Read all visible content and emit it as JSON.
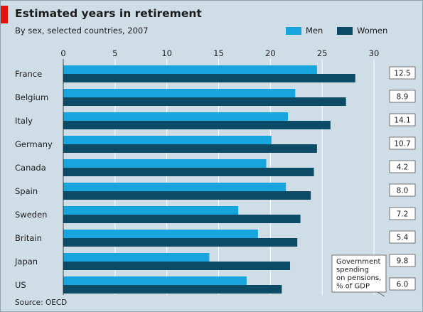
{
  "colors": {
    "men": "#18a4dd",
    "women": "#0c4b66",
    "accent": "#e3120b",
    "background": "#cfdde6"
  },
  "header": {
    "title": "Estimated years in retirement",
    "subtitle": "By sex, selected countries, 2007"
  },
  "legend": {
    "men_label": "Men",
    "women_label": "Women",
    "placement": "top-right"
  },
  "annotation": {
    "lines": [
      "Government",
      "spending",
      "on pensions,",
      "% of GDP"
    ]
  },
  "footer": {
    "source": "Source: OECD"
  },
  "chart_data": {
    "type": "bar",
    "orientation": "horizontal",
    "title": "Estimated years in retirement",
    "subtitle": "By sex, selected countries, 2007",
    "categories": [
      "France",
      "Belgium",
      "Italy",
      "Germany",
      "Canada",
      "Spain",
      "Sweden",
      "Britain",
      "Japan",
      "US"
    ],
    "series": [
      {
        "name": "Men",
        "values": [
          24.5,
          22.4,
          21.7,
          20.1,
          19.6,
          21.5,
          16.9,
          18.8,
          14.1,
          17.7
        ]
      },
      {
        "name": "Women",
        "values": [
          28.2,
          27.3,
          25.8,
          24.5,
          24.2,
          23.9,
          22.9,
          22.6,
          21.9,
          21.1
        ]
      }
    ],
    "xlim": [
      0,
      30
    ],
    "xticks": [
      0,
      5,
      10,
      15,
      20,
      25,
      30
    ],
    "grid": true,
    "side_values": {
      "label": "Government spending on pensions, % of GDP",
      "values": [
        "12.5",
        "8.9",
        "14.1",
        "10.7",
        "4.2",
        "8.0",
        "7.2",
        "5.4",
        "9.8",
        "6.0"
      ]
    }
  }
}
